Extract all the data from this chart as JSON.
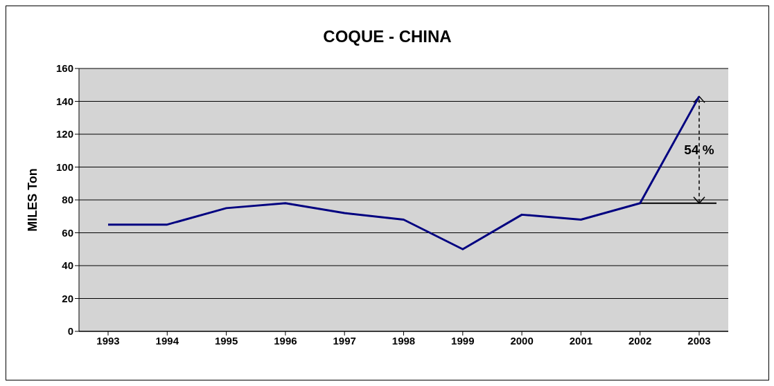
{
  "chart_data": {
    "type": "line",
    "title": "COQUE - CHINA",
    "ylabel": "MILES  Ton",
    "categories": [
      "1993",
      "1994",
      "1995",
      "1996",
      "1997",
      "1998",
      "1999",
      "2000",
      "2001",
      "2002",
      "2003"
    ],
    "series": [
      {
        "color": "#000080",
        "values": [
          65,
          65,
          75,
          78,
          72,
          68,
          50,
          71,
          68,
          78,
          143
        ]
      }
    ],
    "ylim": [
      0,
      160
    ],
    "yticks": [
      0,
      20,
      40,
      60,
      80,
      100,
      120,
      140,
      160
    ],
    "grid": "y",
    "marker": "none",
    "line_style": "solid",
    "ref_lines": [
      {
        "axis": "y",
        "value": 78,
        "color": "#000000"
      }
    ],
    "annotations": [
      "54 %"
    ]
  }
}
